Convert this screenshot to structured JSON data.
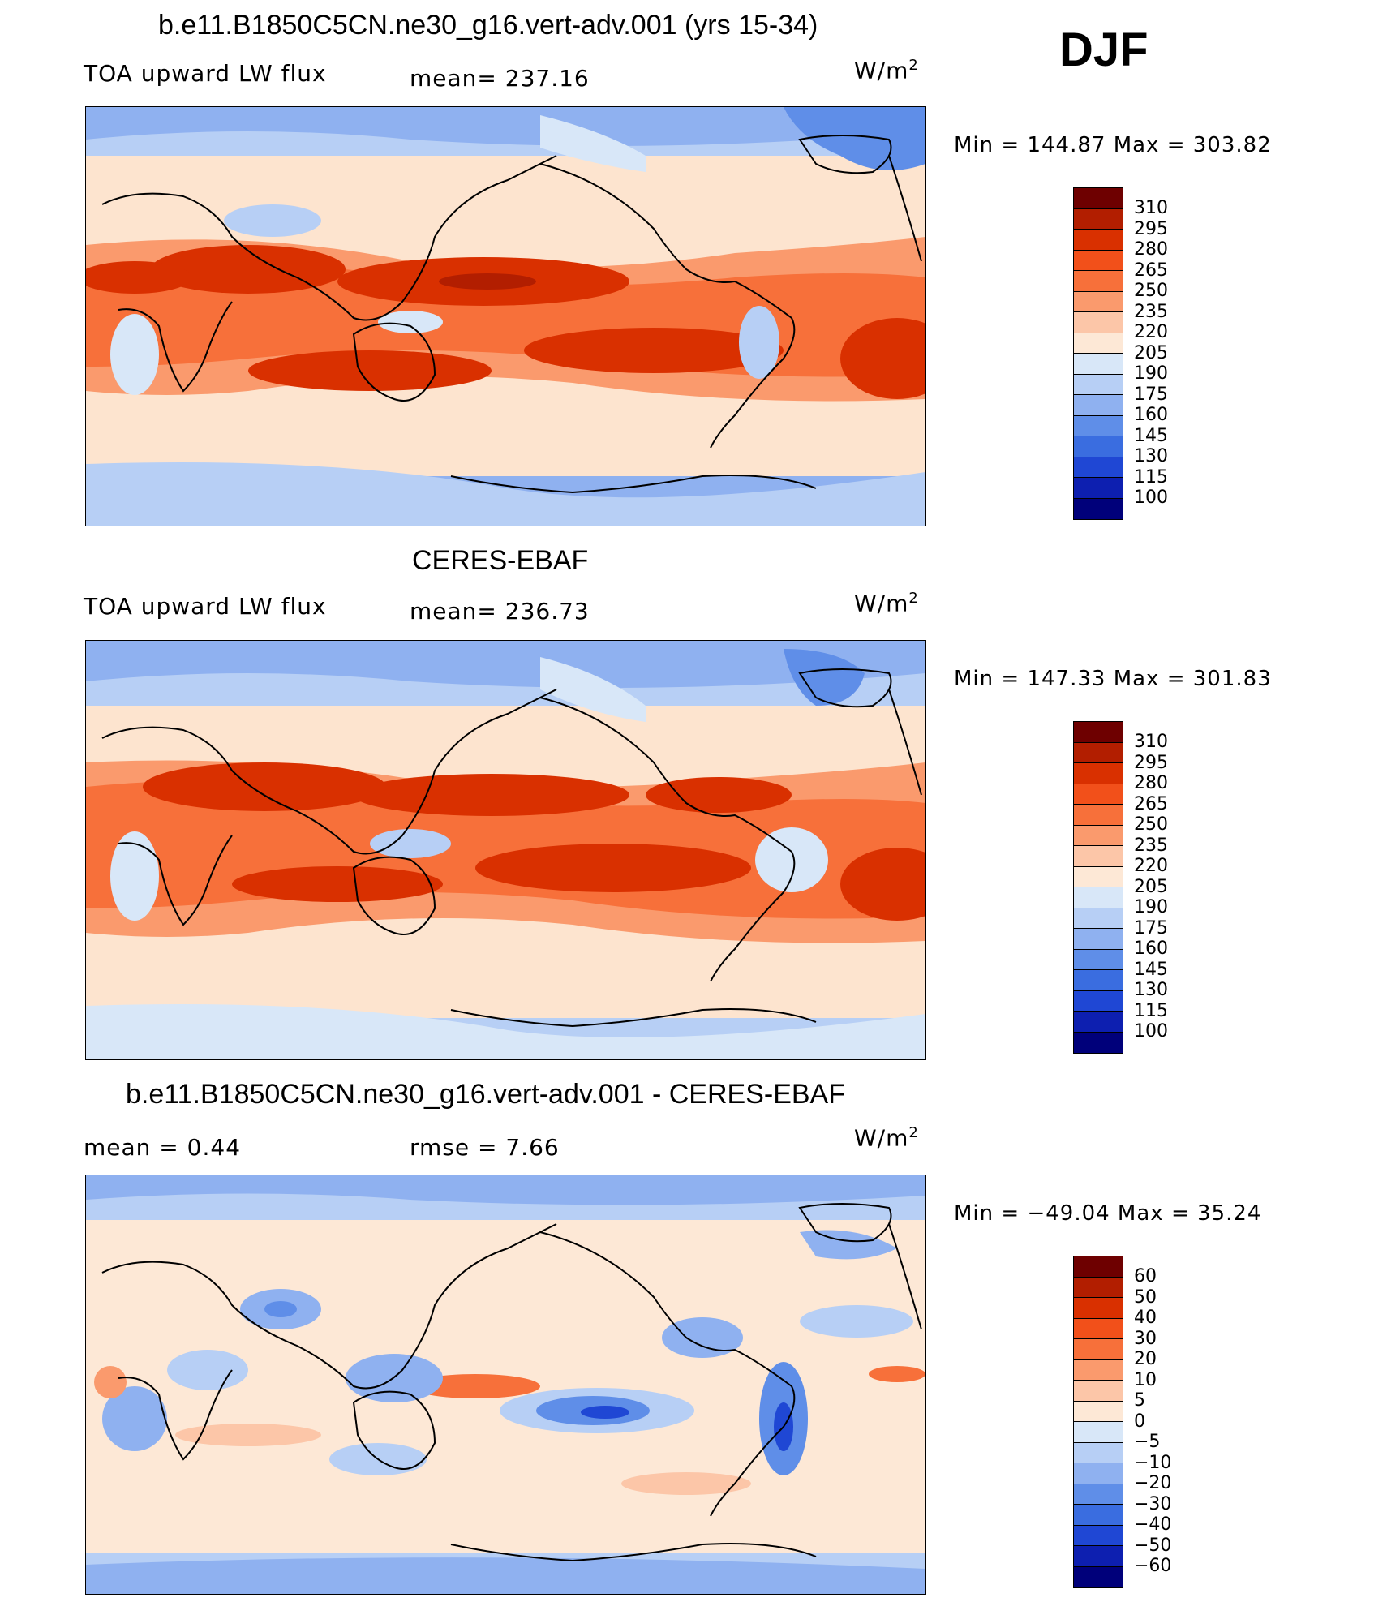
{
  "season": "DJF",
  "panels": [
    {
      "title": "b.e11.B1850C5CN.ne30_g16.vert-adv.001 (yrs 15-34)",
      "variable": "TOA upward LW flux",
      "stat1": "mean=  237.16",
      "stat2": "",
      "unit_base": "W/m",
      "unit_exp": "2",
      "minmax": "Min  =  144.87  Max  =  303.82",
      "colorbar_labels": [
        "310",
        "295",
        "280",
        "265",
        "250",
        "235",
        "220",
        "205",
        "190",
        "175",
        "160",
        "145",
        "130",
        "115",
        "100"
      ]
    },
    {
      "title": "CERES-EBAF",
      "variable": "TOA upward LW flux",
      "stat1": "mean=  236.73",
      "stat2": "",
      "unit_base": "W/m",
      "unit_exp": "2",
      "minmax": "Min  =  147.33  Max  =  301.83",
      "colorbar_labels": [
        "310",
        "295",
        "280",
        "265",
        "250",
        "235",
        "220",
        "205",
        "190",
        "175",
        "160",
        "145",
        "130",
        "115",
        "100"
      ]
    },
    {
      "title": "b.e11.B1850C5CN.ne30_g16.vert-adv.001 - CERES-EBAF",
      "variable": "",
      "stat1": "mean =     0.44",
      "stat2": "rmse =     7.66",
      "unit_base": "W/m",
      "unit_exp": "2",
      "minmax": "Min  =  −49.04  Max  =     35.24",
      "colorbar_labels": [
        "60",
        "50",
        "40",
        "30",
        "20",
        "10",
        "5",
        "0",
        "−5",
        "−10",
        "−20",
        "−30",
        "−40",
        "−50",
        "−60"
      ]
    }
  ],
  "colors": {
    "flux_scale": [
      "#6e0000",
      "#b21e00",
      "#d93000",
      "#f2501a",
      "#f7703a",
      "#fa9a6d",
      "#fcc6a8",
      "#fde8d6",
      "#d8e7f8",
      "#b7cff5",
      "#8fb1f0",
      "#5f8ee8",
      "#3a6de0",
      "#1f47d4",
      "#0d1fb0",
      "#00007a"
    ],
    "diff_scale": [
      "#6e0000",
      "#b21e00",
      "#d93000",
      "#f2501a",
      "#f7703a",
      "#fa9a6d",
      "#fcc6a8",
      "#fde8d6",
      "#d8e7f8",
      "#b7cff5",
      "#8fb1f0",
      "#5f8ee8",
      "#3a6de0",
      "#1f47d4",
      "#0d1fb0",
      "#00007a"
    ]
  }
}
